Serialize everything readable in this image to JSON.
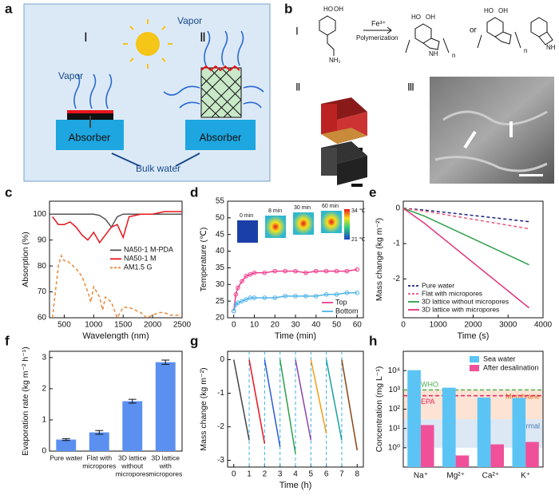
{
  "panel_labels": [
    "a",
    "b",
    "c",
    "d",
    "e",
    "f",
    "g",
    "h"
  ],
  "diagram_a": {
    "numerals": [
      "Ⅰ",
      "Ⅱ"
    ],
    "vapor": [
      "Vapor",
      "Vapor"
    ],
    "absorber": [
      "Absorber",
      "Absorber"
    ],
    "bulk_water": "Bulk water"
  },
  "diagram_b": {
    "sections": [
      "Ⅰ",
      "Ⅱ",
      "Ⅲ"
    ],
    "reagent": "Fe³⁺",
    "reaction": "Polymerization",
    "or": "or",
    "subscripts": [
      "n",
      "n"
    ],
    "groups": [
      "HO",
      "OH",
      "NH₂",
      "HO",
      "OH",
      "NH",
      "HO",
      "OH",
      "NH"
    ]
  },
  "chart_data": [
    {
      "type": "line",
      "x_label": "Wavelength (nm)",
      "y_label": "Absorption (%)",
      "xlim": [
        250,
        2500
      ],
      "xticks": [
        500,
        1000,
        1500,
        2000,
        2500
      ],
      "ylim": [
        60,
        105
      ],
      "yticks": [
        60,
        70,
        80,
        90,
        100
      ],
      "legend": "center-right",
      "x": [
        300,
        400,
        500,
        600,
        700,
        800,
        900,
        1000,
        1100,
        1200,
        1300,
        1400,
        1500,
        1600,
        1800,
        2000,
        2200,
        2500
      ],
      "series": [
        {
          "name": "NA50-1 M-PDA",
          "color": "#555555",
          "values": [
            100,
            100,
            100,
            100,
            100,
            100,
            100,
            100,
            99.5,
            98,
            95,
            99,
            100,
            100,
            100,
            100,
            100,
            100
          ]
        },
        {
          "name": "NA50-1 M",
          "color": "#e8141c",
          "values": [
            99,
            96,
            96,
            97,
            95,
            92,
            90,
            93,
            89,
            92,
            95,
            96,
            91,
            99,
            100,
            100,
            101,
            101
          ]
        },
        {
          "name": "AM1.5 G",
          "color": "#e8893a",
          "style": "dashed",
          "x": [
            300,
            350,
            400,
            450,
            500,
            550,
            600,
            700,
            800,
            900,
            950,
            1000,
            1100,
            1150,
            1200,
            1300,
            1400,
            1500,
            1600,
            1700,
            1800,
            1900,
            2000,
            2100,
            2200,
            2300,
            2400,
            2500
          ],
          "values": [
            60,
            70,
            80,
            84,
            82,
            82,
            81,
            79,
            76,
            70,
            66,
            72,
            68,
            63,
            68,
            66,
            60,
            64,
            64,
            63,
            62,
            60,
            61,
            62,
            62,
            61,
            61,
            61
          ]
        }
      ]
    },
    {
      "type": "line",
      "x_label": "Time (min)",
      "y_label": "Temperature (℃)",
      "xlim": [
        -3,
        63
      ],
      "xticks": [
        0,
        10,
        20,
        30,
        40,
        50,
        60
      ],
      "ylim": [
        20,
        55
      ],
      "yticks": [
        20,
        25,
        30,
        35,
        40,
        45,
        50,
        55
      ],
      "legend": "lower-right",
      "annotations": [
        "0 min",
        "8 min",
        "30 min",
        "60 min",
        "34 ℃",
        "21 ℃"
      ],
      "x": [
        0,
        1,
        2,
        4,
        6,
        8,
        10,
        15,
        20,
        25,
        30,
        35,
        40,
        45,
        50,
        55,
        60
      ],
      "series": [
        {
          "name": "Top",
          "color": "#f03c8c",
          "marker": "circle",
          "values": [
            22,
            27,
            29,
            31,
            32.5,
            33,
            33.5,
            33.5,
            34,
            34,
            34,
            33.5,
            34,
            34,
            34,
            34,
            34.5
          ]
        },
        {
          "name": "Bottom",
          "color": "#4fb3e8",
          "marker": "circle",
          "values": [
            22,
            24,
            24.5,
            25,
            25.5,
            26,
            26,
            26,
            26,
            26.5,
            26.5,
            26.5,
            26.5,
            27,
            27,
            27.5,
            27.5
          ]
        }
      ]
    },
    {
      "type": "line",
      "x_label": "Time (s)",
      "y_label": "Mass change (kg m⁻²)",
      "xlim": [
        0,
        4000
      ],
      "xticks": [
        0,
        1000,
        2000,
        3000,
        4000
      ],
      "ylim": [
        -3.1,
        0.2
      ],
      "yticks": [
        0,
        -1,
        -2
      ],
      "legend": "lower-left",
      "x": [
        0,
        600,
        3600
      ],
      "series": [
        {
          "name": "Pure water",
          "color": "#1a237e",
          "style": "dashed",
          "values": [
            0,
            -0.05,
            -0.38
          ]
        },
        {
          "name": "Flat with micropores",
          "color": "#e8567a",
          "style": "dashed",
          "values": [
            0,
            -0.08,
            -0.58
          ]
        },
        {
          "name": "3D lattice without micropores",
          "color": "#2e9e4a",
          "values": [
            0,
            -0.22,
            -1.6
          ]
        },
        {
          "name": "3D lattice with micropores",
          "color": "#e0307a",
          "values": [
            0,
            -0.42,
            -2.82
          ]
        }
      ]
    },
    {
      "type": "bar",
      "y_label": "Evaporation rate (kg m⁻² h⁻¹)",
      "ylim": [
        0,
        3.2
      ],
      "yticks": [
        0,
        1,
        2,
        3
      ],
      "color": "#5b8ff0",
      "categories": [
        [
          "Pure water"
        ],
        [
          "Flat with",
          "micropores"
        ],
        [
          "3D lattice",
          "without",
          "micropores"
        ],
        [
          "3D lattice",
          "with",
          "micropores"
        ]
      ],
      "values": [
        0.37,
        0.6,
        1.6,
        2.85
      ],
      "errors": [
        0.03,
        0.06,
        0.06,
        0.07
      ]
    },
    {
      "type": "line",
      "x_label": "Time (h)",
      "y_label": "Mass change (kg m⁻²)",
      "xlim": [
        -0.4,
        8.4
      ],
      "xticks": [
        0,
        1,
        2,
        3,
        4,
        5,
        6,
        7,
        8
      ],
      "ylim": [
        -3.2,
        0.25
      ],
      "yticks": [
        0,
        -1,
        -2,
        -3
      ],
      "vlines": [
        1,
        2,
        3,
        4,
        5,
        6,
        7
      ],
      "series": [
        {
          "color": "#444444",
          "x": [
            0,
            1
          ],
          "values": [
            0,
            -2.4
          ]
        },
        {
          "color": "#e8141c",
          "x": [
            1,
            2
          ],
          "values": [
            0,
            -2.5
          ]
        },
        {
          "color": "#2a5bd7",
          "x": [
            2,
            3
          ],
          "values": [
            0,
            -2.6
          ]
        },
        {
          "color": "#2e9e4a",
          "x": [
            3,
            4
          ],
          "values": [
            0,
            -2.8
          ]
        },
        {
          "color": "#8e44ad",
          "x": [
            4,
            5
          ],
          "values": [
            0,
            -2.4
          ]
        },
        {
          "color": "#f39c12",
          "x": [
            5,
            6
          ],
          "values": [
            0,
            -2.2
          ]
        },
        {
          "color": "#16a0a0",
          "x": [
            6,
            7
          ],
          "values": [
            0,
            -2.4
          ]
        },
        {
          "color": "#8b4513",
          "x": [
            7,
            8
          ],
          "values": [
            0,
            -2.7
          ]
        }
      ]
    },
    {
      "type": "bar",
      "y_label": "Concentration (mg L⁻¹)",
      "log": true,
      "ylim": [
        0.1,
        100000
      ],
      "yticks": [
        {
          "value": 1,
          "label": "10⁰"
        },
        {
          "value": 10,
          "label": "10¹"
        },
        {
          "value": 100,
          "label": "10²"
        },
        {
          "value": 1000,
          "label": "10³"
        },
        {
          "value": 10000,
          "label": "10⁴"
        }
      ],
      "legend": "upper-right",
      "categories": [
        "Na⁺",
        "Mg²⁺",
        "Ca²⁺",
        "K⁺"
      ],
      "bands": [
        {
          "label": "Membrane",
          "range": [
            30,
            1000
          ],
          "color": "#fde3d3"
        },
        {
          "label": "Thermal",
          "range": [
            1,
            30
          ],
          "color": "#dde8f5"
        }
      ],
      "reference_lines": [
        {
          "label": "WHO",
          "value": 1000,
          "color": "#4caf50"
        },
        {
          "label": "EPA",
          "value": 500,
          "color": "#e0245e"
        }
      ],
      "series": [
        {
          "name": "Sea water",
          "color": "#5bc4f5",
          "values": [
            10500,
            1300,
            400,
            380
          ]
        },
        {
          "name": "After desalination",
          "color": "#f0509a",
          "values": [
            15,
            0.4,
            1.5,
            2
          ]
        }
      ]
    }
  ]
}
